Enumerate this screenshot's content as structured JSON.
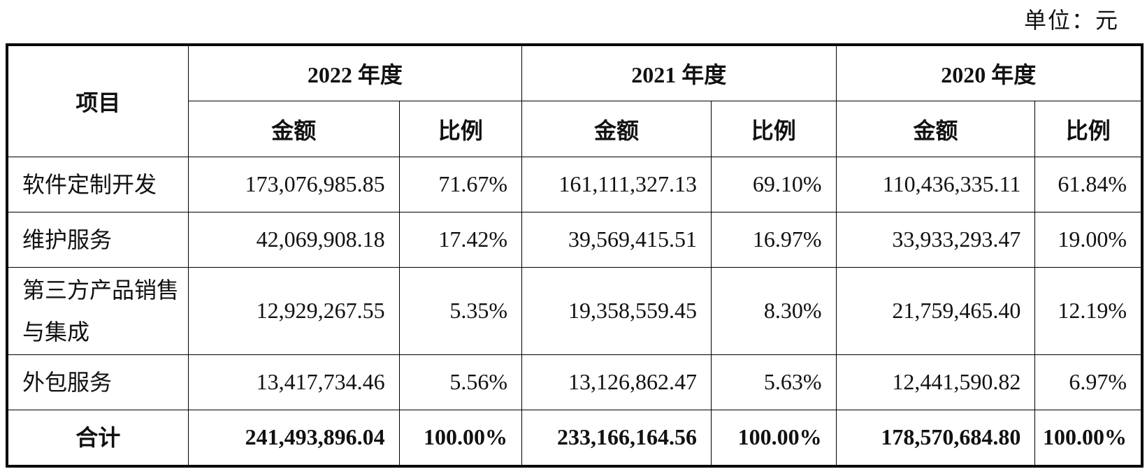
{
  "unit_label": "单位：元",
  "header": {
    "item": "项目",
    "years": [
      "2022 年度",
      "2021 年度",
      "2020 年度"
    ],
    "amount": "金额",
    "ratio": "比例"
  },
  "rows": [
    {
      "name": "软件定制开发",
      "values": [
        "173,076,985.85",
        "71.67%",
        "161,111,327.13",
        "69.10%",
        "110,436,335.11",
        "61.84%"
      ]
    },
    {
      "name": "维护服务",
      "values": [
        "42,069,908.18",
        "17.42%",
        "39,569,415.51",
        "16.97%",
        "33,933,293.47",
        "19.00%"
      ]
    },
    {
      "name": "第三方产品销售与集成",
      "values": [
        "12,929,267.55",
        "5.35%",
        "19,358,559.45",
        "8.30%",
        "21,759,465.40",
        "12.19%"
      ]
    },
    {
      "name": "外包服务",
      "values": [
        "13,417,734.46",
        "5.56%",
        "13,126,862.47",
        "5.63%",
        "12,441,590.82",
        "6.97%"
      ]
    }
  ],
  "total": {
    "name": "合计",
    "values": [
      "241,493,896.04",
      "100.00%",
      "233,166,164.56",
      "100.00%",
      "178,570,684.80",
      "100.00%"
    ]
  }
}
